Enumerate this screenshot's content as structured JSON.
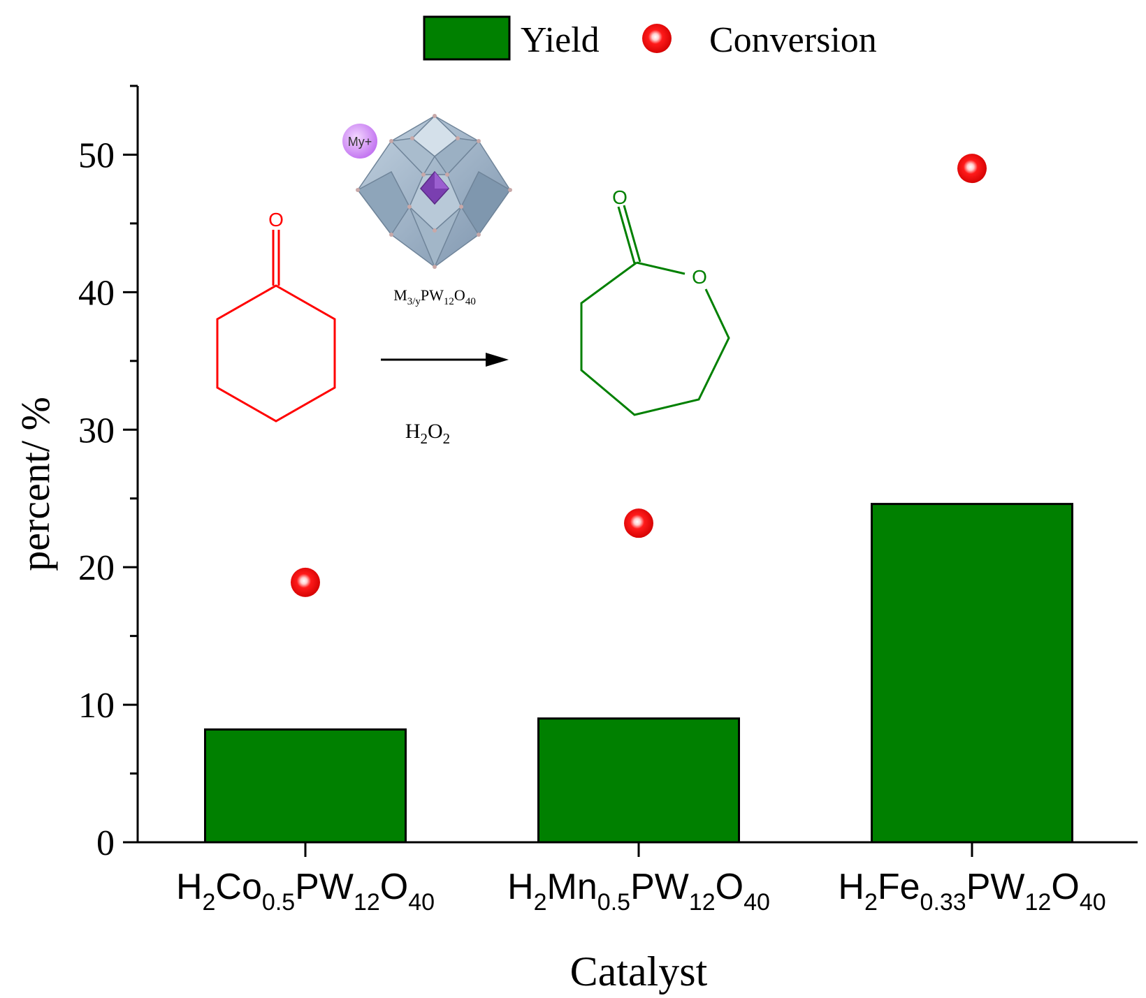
{
  "chart_data": {
    "type": "bar",
    "categories": [
      "H2Co0.5PW12O40",
      "H2Mn0.5PW12O40",
      "H2Fe0.33PW12O40"
    ],
    "category_labels": [
      {
        "base": [
          "H",
          "Co",
          "PW",
          "O",
          ""
        ],
        "subs": [
          "2",
          "0.5",
          "12",
          "40"
        ]
      },
      {
        "base": [
          "H",
          "Mn",
          "PW",
          "O",
          ""
        ],
        "subs": [
          "2",
          "0.5",
          "12",
          "40"
        ]
      },
      {
        "base": [
          "H",
          "Fe",
          "PW",
          "O",
          ""
        ],
        "subs": [
          "2",
          "0.33",
          "12",
          "40"
        ]
      }
    ],
    "series": [
      {
        "name": "Yield",
        "kind": "bar",
        "color": "#008000",
        "values": [
          8.2,
          9.0,
          24.6
        ]
      },
      {
        "name": "Conversion",
        "kind": "scatter",
        "color": "#ff0000",
        "values": [
          18.9,
          23.2,
          49.0
        ]
      }
    ],
    "xlabel": "Catalyst",
    "ylabel": "percent/ %",
    "ylim": [
      0,
      55
    ],
    "yticks": [
      0,
      10,
      20,
      30,
      40,
      50
    ],
    "grid": false,
    "legend": "top-center",
    "inset": {
      "catalyst_label": {
        "base": [
          "M",
          "PW",
          "O",
          ""
        ],
        "subs": [
          "3/y",
          "12",
          "40"
        ]
      },
      "ion_label": "My+",
      "oxidant_label": {
        "base": [
          "H",
          "O",
          ""
        ],
        "subs": [
          "2",
          "2"
        ]
      },
      "atom_labels": [
        "O",
        "O",
        "O"
      ],
      "reactant_color": "#ff0000",
      "product_color": "#008000"
    }
  }
}
